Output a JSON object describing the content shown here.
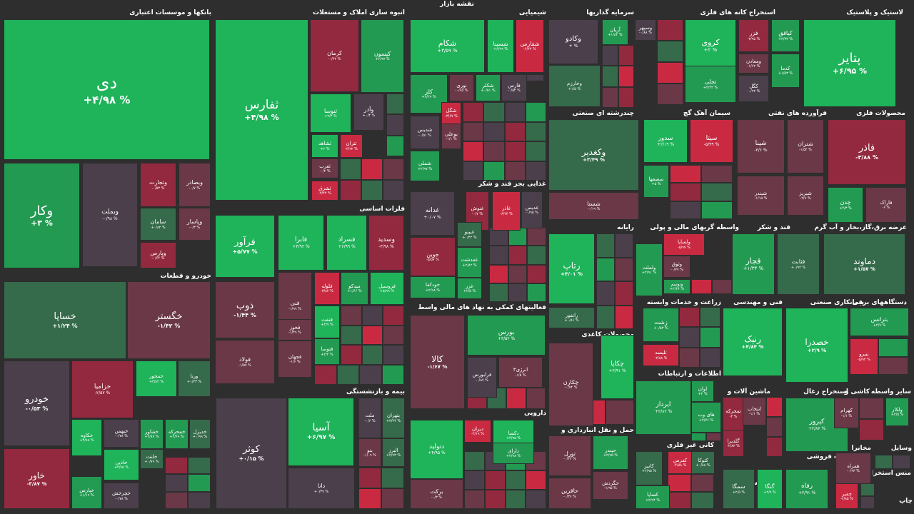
{
  "map_title": "نقشه بازار",
  "palette": {
    "g3": "#1fb35a",
    "g2": "#239a52",
    "g1": "#356a4b",
    "n0": "#4a3f4a",
    "r1": "#6a3846",
    "r2": "#93293e",
    "r3": "#c92a42"
  },
  "chart_data": {
    "type": "treemap",
    "sectors": [
      {
        "name": "بانکها و موسسات اعتباری"
      },
      {
        "name": "انبوه سازی املاک و مستغلات"
      },
      {
        "name": "شیمیایی"
      },
      {
        "name": "سرمایه گذاریها"
      },
      {
        "name": "استخراج کانه های فلزی"
      },
      {
        "name": "لاستیک و پلاستیک"
      },
      {
        "name": "خودرو و قطعات"
      },
      {
        "name": "فلزات اساسی"
      },
      {
        "name": "غذایی بجز قند و شکر"
      },
      {
        "name": "چندرشته ای صنعتی"
      },
      {
        "name": "سیمان آهک گچ"
      },
      {
        "name": "فرآورده های نفتی"
      },
      {
        "name": "محصولات فلزی"
      },
      {
        "name": "رایانه"
      },
      {
        "name": "واسطه گریهای مالی و پولی"
      },
      {
        "name": "قند و شکر"
      },
      {
        "name": "عرضه برق،گاز،بخار و آب گرم"
      },
      {
        "name": "فعالیتهای کمکی به نهاد های مالی واسط"
      },
      {
        "name": "محصولات کاغذی"
      },
      {
        "name": "زراعت و خدمات وابسته"
      },
      {
        "name": "فنی و مهندسی"
      },
      {
        "name": "پیمانکاری صنعتی"
      },
      {
        "name": "دستگاههای برقی"
      },
      {
        "name": "بیمه و بازنشستگی"
      },
      {
        "name": "اطلاعات و ارتباطات"
      },
      {
        "name": "ماشین آلات و"
      },
      {
        "name": "استخراج زغال"
      },
      {
        "name": "کاشی و"
      },
      {
        "name": "سایر واسطه"
      },
      {
        "name": "دارویی"
      },
      {
        "name": "حمل و نقل انبارداری و"
      },
      {
        "name": "کانی غیر فلزی"
      },
      {
        "name": "خرده فروشی"
      },
      {
        "name": "وسایل"
      },
      {
        "name": "مخابرات"
      },
      {
        "name": "منس استخراج"
      },
      {
        "name": "هتل و رستوران"
      },
      {
        "name": "محصولات"
      },
      {
        "name": "چاپ"
      }
    ],
    "tiles": [
      {
        "name": "دی",
        "value": "+۴/۹۸ %",
        "c": "g3"
      },
      {
        "name": "وکار",
        "value": "+۳ %",
        "c": "g2"
      },
      {
        "name": "وبملت",
        "value": "-۰/۹۸ %",
        "c": "n0"
      },
      {
        "name": "وتجارت",
        "value": "-۰/۵۳ %",
        "c": "r2"
      },
      {
        "name": "وبصادر",
        "value": "-۰/۷ %",
        "c": "r1"
      },
      {
        "name": "سامان",
        "value": "+۰/۸۲ %",
        "c": "g1"
      },
      {
        "name": "وپاسار",
        "value": "-۰/۳ %",
        "c": "r1"
      },
      {
        "name": "وپارس",
        "value": "-۰/۶۴ %",
        "c": "r2"
      },
      {
        "name": "ثفارس",
        "value": "+۴/۹۸ %",
        "c": "g3"
      },
      {
        "name": "کرمان",
        "value": "-۰/۴۲ %",
        "c": "r2"
      },
      {
        "name": "کیسون",
        "value": "+۲/۹۷ %",
        "c": "g2"
      },
      {
        "name": "ثنوسا",
        "value": "+۲/۴ %",
        "c": "g3"
      },
      {
        "name": "وآذر",
        "value": "+۰/۴ %",
        "c": "n0"
      },
      {
        "name": "ثشاهد",
        "value": "+۲ %",
        "c": "g3"
      },
      {
        "name": "ثتران",
        "value": "-۲/۹۲ %",
        "c": "r3"
      },
      {
        "name": "ثغرب",
        "value": "-۰/۲ %",
        "c": "r1"
      },
      {
        "name": "ثشرق",
        "value": "-۲/۴۴ %",
        "c": "r3"
      },
      {
        "name": "شکام",
        "value": "+۳/۵۹ %",
        "c": "g3"
      },
      {
        "name": "شسینا",
        "value": "+۶/۹۹ %",
        "c": "g3"
      },
      {
        "name": "شفارس",
        "value": "-۶/۴۲ %",
        "c": "r3"
      },
      {
        "name": "نوری",
        "value": "-۰/۶۵ %",
        "c": "r1"
      },
      {
        "name": "شکلر",
        "value": "+۰/۵۱ %",
        "c": "g2"
      },
      {
        "name": "فارس",
        "value": "-۰/۵۴ %",
        "c": "n0"
      },
      {
        "name": "کلر",
        "value": "+۲/۲۹ %",
        "c": "g2"
      },
      {
        "name": "شگل",
        "value": "-۳/۶۷ %",
        "c": "r3"
      },
      {
        "name": "شدیس",
        "value": "-۰/۵۱ %",
        "c": "n0"
      },
      {
        "name": "بوعلی",
        "value": "-۱/۱ %",
        "c": "r1"
      },
      {
        "name": "شملی",
        "value": "+۲/۹۷ %",
        "c": "g2"
      },
      {
        "name": "وکادو",
        "value": "+ %",
        "c": "n0"
      },
      {
        "name": "آریان",
        "value": "+۱/۸۴ %",
        "c": "g2"
      },
      {
        "name": "وسپهر",
        "value": "-۰/۸۸ %",
        "c": "n0"
      },
      {
        "name": "وخارزم",
        "value": "+۱/۵ %",
        "c": "g1"
      },
      {
        "name": "کروی",
        "value": "+۲ %",
        "c": "g3"
      },
      {
        "name": "فزر",
        "value": "-۲/۹۵ %",
        "c": "r2"
      },
      {
        "name": "کیاقق",
        "value": "+۲/۳۳ %",
        "c": "g2"
      },
      {
        "name": "ومعادن",
        "value": "-۱/۶۲ %",
        "c": "r1"
      },
      {
        "name": "کدما",
        "value": "+۱/۵۳ %",
        "c": "g2"
      },
      {
        "name": "تجلی",
        "value": "+۲/۴۲ %",
        "c": "g2"
      },
      {
        "name": "کگل",
        "value": "-۰/۹۲ %",
        "c": "n0"
      },
      {
        "name": "پتایر",
        "value": "+۶/۹۵ %",
        "c": "g3"
      },
      {
        "name": "خساپا",
        "value": "+۱/۲۴ %",
        "c": "g1"
      },
      {
        "name": "خگستر",
        "value": "-۱/۴۲ %",
        "c": "r1"
      },
      {
        "name": "خودرو",
        "value": "-۰/۵۳ %",
        "c": "n0"
      },
      {
        "name": "خزامیا",
        "value": "-۲/۵۷ %",
        "c": "r2"
      },
      {
        "name": "خمحور",
        "value": "+۴/۸۲ %",
        "c": "g3"
      },
      {
        "name": "ورنا",
        "value": "+۱/۳۳ %",
        "c": "g1"
      },
      {
        "name": "خکاوه",
        "value": "+۳/۸۸ %",
        "c": "g3"
      },
      {
        "name": "خبهمن",
        "value": "-۰/۷۸ %",
        "c": "n0"
      },
      {
        "name": "خفناور",
        "value": "+۲/۸۷ %",
        "c": "g2"
      },
      {
        "name": "خمحرکه",
        "value": "+۲/۶۹ %",
        "c": "g2"
      },
      {
        "name": "خدیزل",
        "value": "+۰/۹۹ %",
        "c": "g1"
      },
      {
        "name": "خاذین",
        "value": "+۲/۷۵ %",
        "c": "g3"
      },
      {
        "name": "خلنت",
        "value": "+۰/۷۹ %",
        "c": "g1"
      },
      {
        "name": "خاور",
        "value": "-۳/۸۷ %",
        "c": "r2"
      },
      {
        "name": "خپارس",
        "value": "+۱/۱۹ %",
        "c": "g2"
      },
      {
        "name": "خچرخش",
        "value": "-۰/۷۸ %",
        "c": "n0"
      },
      {
        "name": "فرآور",
        "value": "+۵/۷۷ %",
        "c": "g3"
      },
      {
        "name": "فابرا",
        "value": "+۴/۹۲ %",
        "c": "g3"
      },
      {
        "name": "فسراد",
        "value": "+۶/۹۹ %",
        "c": "g3"
      },
      {
        "name": "وسدید",
        "value": "-۳/۹۸ %",
        "c": "r2"
      },
      {
        "name": "ذوب",
        "value": "-۱/۴۴ %",
        "c": "r1"
      },
      {
        "name": "فولاد",
        "value": "-۱/۵۷ %",
        "c": "r1"
      },
      {
        "name": "فلوله",
        "value": "-۳/۸۲ %",
        "c": "r3"
      },
      {
        "name": "میدکو",
        "value": "+۱/۶۶ %",
        "c": "g2"
      },
      {
        "name": "فروسیل",
        "value": "+۵/۹۹ %",
        "c": "g3"
      },
      {
        "name": "فنفت",
        "value": "+۲/۹ %",
        "c": "g3"
      },
      {
        "name": "فنی",
        "value": "-۱/۹۹ %",
        "c": "r1"
      },
      {
        "name": "فخوز",
        "value": "-۱/۲۹ %",
        "c": "r1"
      },
      {
        "name": "فتوسا",
        "value": "+۲/۲ %",
        "c": "g2"
      },
      {
        "name": "فجهان",
        "value": "-۱/۶ %",
        "c": "r1"
      },
      {
        "name": "غدانه",
        "value": "+۰/۰۷ %",
        "c": "n0"
      },
      {
        "name": "غنوش",
        "value": "-۰/۷ %",
        "c": "r2"
      },
      {
        "name": "غاذر",
        "value": "-۶/۲۴ %",
        "c": "r3"
      },
      {
        "name": "غدیس",
        "value": "-۰/۹۵ %",
        "c": "n0"
      },
      {
        "name": "غبینو",
        "value": "+۰/۴۲ %",
        "c": "g1"
      },
      {
        "name": "جوین",
        "value": "-۵/۵۷ %",
        "c": "r2"
      },
      {
        "name": "غفدشت",
        "value": "+۲/۸۲ %",
        "c": "g2"
      },
      {
        "name": "غزر",
        "value": "+۲/۵ %",
        "c": "g2"
      },
      {
        "name": "خودکفا",
        "value": "+۲/۹۸ %",
        "c": "g2"
      },
      {
        "name": "وکغدیر",
        "value": "+۳/۴۹ %",
        "c": "g1"
      },
      {
        "name": "شستا",
        "value": "-۰/۱۹ %",
        "c": "r1"
      },
      {
        "name": "سدور",
        "value": "+۲/۱۹ %",
        "c": "g3"
      },
      {
        "name": "سیتا",
        "value": "-۵/۹۹ %",
        "c": "r3"
      },
      {
        "name": "سصفها",
        "value": "+۵ %",
        "c": "g2"
      },
      {
        "name": "شپنا",
        "value": "-۳/۶ %",
        "c": "r1"
      },
      {
        "name": "شتران",
        "value": "-۱/۵۲ %",
        "c": "r1"
      },
      {
        "name": "شبندر",
        "value": "-۱/۱۵ %",
        "c": "r1"
      },
      {
        "name": "شبریز",
        "value": "-۲/۹ %",
        "c": "r1"
      },
      {
        "name": "فاذر",
        "value": "-۳/۸۸ %",
        "c": "r2"
      },
      {
        "name": "چدن",
        "value": "+۴/۳ %",
        "c": "g2"
      },
      {
        "name": "فاراک",
        "value": "-۶ %",
        "c": "r1"
      },
      {
        "name": "رتاپ",
        "value": "+۴/۰۱ %",
        "c": "g3"
      },
      {
        "name": "رانفور",
        "value": "+۰/۸۶ %",
        "c": "g1"
      },
      {
        "name": "ولساپا",
        "value": "-۵/۹۷ %",
        "c": "r3"
      },
      {
        "name": "وثوق",
        "value": "-۰/۷۹ %",
        "c": "r1"
      },
      {
        "name": "وتوسم",
        "value": "+۲/۶۶ %",
        "c": "g2"
      },
      {
        "name": "ولملت",
        "value": "+۲/۹۱ %",
        "c": "g2"
      },
      {
        "name": "قجار",
        "value": "+۱/۳۳ %",
        "c": "g2"
      },
      {
        "name": "قثابت",
        "value": "+۰/۹۴ %",
        "c": "g1"
      },
      {
        "name": "دماوند",
        "value": "+۱/۵۷ %",
        "c": "g1"
      },
      {
        "name": "کالا",
        "value": "-۱/۶۷ %",
        "c": "r1"
      },
      {
        "name": "بورس",
        "value": "+۳/۵۲ %",
        "c": "g2"
      },
      {
        "name": "انرژی۳",
        "value": "-۱/۵ %",
        "c": "r1"
      },
      {
        "name": "فرابورس",
        "value": "-۰/۸۷ %",
        "c": "n0"
      },
      {
        "name": "چکاپا",
        "value": "+۳/۹۱ %",
        "c": "g3"
      },
      {
        "name": "چکارن",
        "value": "-۰/۷۴ %",
        "c": "r1"
      },
      {
        "name": "زشت",
        "value": "+۰/۵۳ %",
        "c": "g2"
      },
      {
        "name": "تلیسه",
        "value": "-۲/۸۸ %",
        "c": "r3"
      },
      {
        "name": "رنیک",
        "value": "+۴/۸۴ %",
        "c": "g3"
      },
      {
        "name": "خصدرا",
        "value": "+۲/۹ %",
        "c": "g3"
      },
      {
        "name": "بترانس",
        "value": "+۴/۷ %",
        "c": "g2"
      },
      {
        "name": "بنیرو",
        "value": "-۵/۹۲ %",
        "c": "r3"
      },
      {
        "name": "آسیا",
        "value": "+۶/۹۷ %",
        "c": "g3"
      },
      {
        "name": "کوثر",
        "value": "+۰/۱۵ %",
        "c": "n0"
      },
      {
        "name": "ملت",
        "value": "-۰/۶ %",
        "c": "n0"
      },
      {
        "name": "بتهران",
        "value": "+۳/۴۴ %",
        "c": "g1"
      },
      {
        "name": "بنو",
        "value": "-۱/۰۹ %",
        "c": "r1"
      },
      {
        "name": "البرز",
        "value": "+۲/۹۳ %",
        "c": "g1"
      },
      {
        "name": "دانا",
        "value": "+۰/۳۷ %",
        "c": "n0"
      },
      {
        "name": "ایرداز",
        "value": "+۲/۸۲ %",
        "c": "g2"
      },
      {
        "name": "اوان",
        "value": "+۲ %",
        "c": "g2"
      },
      {
        "name": "های وب",
        "value": "+۲/۷۶ %",
        "c": "g2"
      },
      {
        "name": "تمحرکه",
        "value": "-۳ %",
        "c": "r2"
      },
      {
        "name": "انتخاب",
        "value": "-۱/۱ %",
        "c": "r1"
      },
      {
        "name": "گلدیرا",
        "value": "-۲/۸۳ %",
        "c": "r2"
      },
      {
        "name": "کپرور",
        "value": "+۲/۸۶ %",
        "c": "g2"
      },
      {
        "name": "کهرام",
        "value": "-۱/۱ %",
        "c": "r1"
      },
      {
        "name": "ولکار",
        "value": "+۲/۵ %",
        "c": "g2"
      },
      {
        "name": "دتولید",
        "value": "+۴/۹۵ %",
        "c": "g3"
      },
      {
        "name": "دیران",
        "value": "-۴/۱۹ %",
        "c": "r3"
      },
      {
        "name": "دکسا",
        "value": "+۴/۹۵ %",
        "c": "g3"
      },
      {
        "name": "برکت",
        "value": "-۰/۳ %",
        "c": "r1"
      },
      {
        "name": "دارای",
        "value": "+۲/۹۸ %",
        "c": "g2"
      },
      {
        "name": "تورل",
        "value": "-۰/۳۲ %",
        "c": "r1"
      },
      {
        "name": "حاقرین",
        "value": "-۰/۳۶ %",
        "c": "r1"
      },
      {
        "name": "حپندر",
        "value": "+۲/۹۵ %",
        "c": "g2"
      },
      {
        "name": "حگردش",
        "value": "-۱/۹۵ %",
        "c": "r1"
      },
      {
        "name": "کانیز",
        "value": "+۲/۹۵ %",
        "c": "g1"
      },
      {
        "name": "کساپا",
        "value": "+۲/۹۴ %",
        "c": "g2"
      },
      {
        "name": "کفرس",
        "value": "-۴/۸۸ %",
        "c": "r3"
      },
      {
        "name": "کتوکا",
        "value": "+۰/۸۸ %",
        "c": "g1"
      },
      {
        "name": "سمگا",
        "value": "+۲/۵ %",
        "c": "g1"
      },
      {
        "name": "گنگا",
        "value": "+۲/۹ %",
        "c": "g3"
      },
      {
        "name": "رفاه",
        "value": "+۲/۹۱ %",
        "c": "g2"
      },
      {
        "name": "همراه",
        "value": "-۰/۹۳ %",
        "c": "r1"
      },
      {
        "name": "چفیر",
        "value": "-۲/۸۵ %",
        "c": "r3"
      }
    ]
  }
}
